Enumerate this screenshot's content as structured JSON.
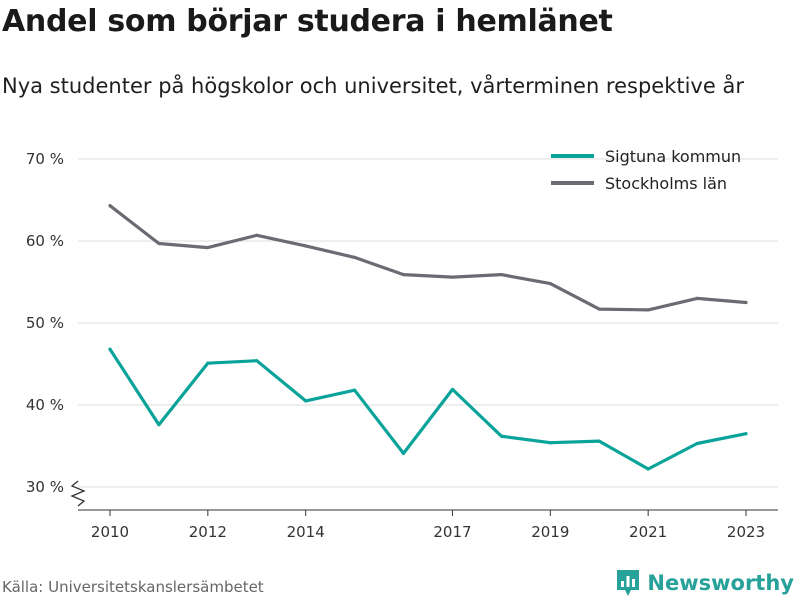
{
  "header": {
    "title": "Andel som börjar studera i hemlänet",
    "subtitle": "Nya studenter på högskolor och universitet, vårterminen respektive år"
  },
  "footer": {
    "source": "Källa: Universitetskanslersämbetet",
    "brand": "Newsworthy",
    "brand_color": "#27a29a"
  },
  "chart_data": {
    "type": "line",
    "title": "Andel som börjar studera i hemlänet",
    "subtitle": "Nya studenter på högskolor och universitet, vårterminen respektive år",
    "xlabel": "",
    "ylabel": "",
    "x": [
      2010,
      2011,
      2012,
      2013,
      2014,
      2015,
      2016,
      2017,
      2018,
      2019,
      2020,
      2021,
      2022,
      2023
    ],
    "x_ticks": [
      2010,
      2012,
      2014,
      2017,
      2019,
      2021,
      2023
    ],
    "y_ticks": [
      30,
      40,
      50,
      60,
      70
    ],
    "y_tick_labels": [
      "30 %",
      "40 %",
      "50 %",
      "60 %",
      "70 %"
    ],
    "ylim": [
      28,
      72
    ],
    "y_axis_break": true,
    "grid": true,
    "legend_position": "top-right",
    "series": [
      {
        "name": "Sigtuna kommun",
        "color": "#0aa39a",
        "values": [
          46.8,
          37.6,
          45.1,
          45.4,
          40.5,
          41.8,
          34.1,
          41.9,
          36.2,
          35.4,
          35.6,
          32.2,
          35.3,
          36.5
        ]
      },
      {
        "name": "Stockholms län",
        "color": "#6b6b73",
        "values": [
          64.3,
          59.7,
          59.2,
          60.7,
          59.4,
          58.0,
          55.9,
          55.6,
          55.9,
          54.8,
          51.7,
          51.6,
          53.0,
          52.5
        ]
      }
    ]
  }
}
